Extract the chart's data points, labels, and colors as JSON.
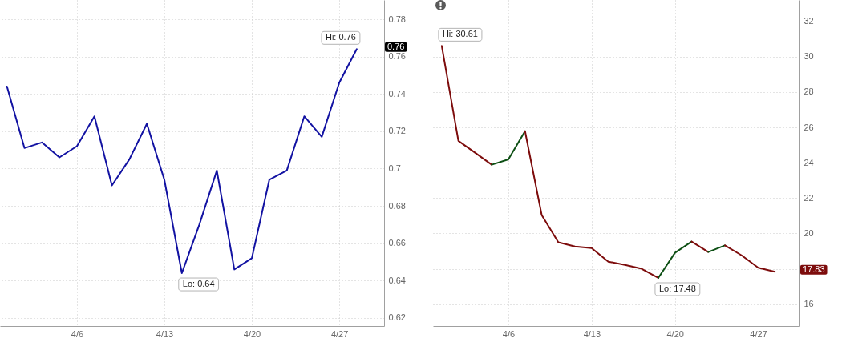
{
  "chart_data": [
    {
      "type": "line",
      "categories": [
        null,
        null,
        null,
        null,
        "4/6",
        null,
        null,
        null,
        null,
        "4/13",
        null,
        null,
        null,
        null,
        "4/20",
        null,
        null,
        null,
        null,
        "4/27",
        null
      ],
      "series": [
        {
          "color": "#1212a2",
          "values": [
            0.744,
            0.711,
            0.714,
            0.706,
            0.712,
            0.728,
            0.691,
            0.705,
            0.724,
            0.694,
            0.644,
            0.67,
            0.699,
            0.646,
            0.652,
            0.694,
            0.699,
            0.728,
            0.717,
            0.746,
            0.764
          ],
          "value_labels": [
            null,
            null,
            null,
            null,
            null,
            null,
            null,
            null,
            null,
            null,
            "Lo: 0.64",
            null,
            null,
            null,
            null,
            null,
            null,
            null,
            null,
            null,
            "Hi: 0.76"
          ]
        }
      ],
      "ylim": [
        0.6157,
        0.7903
      ],
      "yticks": [
        0.62,
        0.64,
        0.66,
        0.68,
        0.7,
        0.72,
        0.74,
        0.76,
        0.78
      ],
      "grid": true,
      "annotations": [
        "0.76"
      ]
    },
    {
      "type": "line",
      "categories": [
        null,
        null,
        null,
        null,
        "4/6",
        null,
        null,
        null,
        null,
        "4/13",
        null,
        null,
        null,
        null,
        "4/20",
        null,
        null,
        null,
        null,
        "4/27",
        null
      ],
      "series": [
        {
          "color": "#7d0c0c",
          "values": [
            30.61,
            25.24,
            24.57,
            23.89,
            null,
            null,
            null,
            null,
            null,
            null,
            null,
            null,
            null,
            null,
            null,
            null,
            null,
            null,
            null,
            null,
            null
          ],
          "value_labels": [
            "Hi: 30.61",
            null,
            null,
            null,
            null,
            null,
            null,
            null,
            null,
            null,
            null,
            null,
            null,
            null,
            null,
            null,
            null,
            null,
            null,
            null,
            null
          ]
        },
        {
          "color": "#0d4f14",
          "values": [
            null,
            null,
            null,
            23.89,
            24.19,
            25.79,
            null,
            null,
            null,
            null,
            null,
            null,
            null,
            null,
            null,
            null,
            null,
            null,
            null,
            null,
            null
          ]
        },
        {
          "color": "#7d0c0c",
          "values": [
            null,
            null,
            null,
            null,
            null,
            25.79,
            21.04,
            19.5,
            19.26,
            19.17,
            18.4,
            18.22,
            18.0,
            17.48,
            null,
            null,
            null,
            null,
            null,
            null,
            null
          ],
          "value_labels": [
            null,
            null,
            null,
            null,
            null,
            null,
            null,
            null,
            null,
            null,
            null,
            null,
            null,
            "Lo: 17.48",
            null,
            null,
            null,
            null,
            null,
            null,
            null
          ]
        },
        {
          "color": "#0d4f14",
          "values": [
            null,
            null,
            null,
            null,
            null,
            null,
            null,
            null,
            null,
            null,
            null,
            null,
            null,
            17.48,
            18.9,
            19.54,
            null,
            null,
            null,
            null,
            null
          ]
        },
        {
          "color": "#7d0c0c",
          "values": [
            null,
            null,
            null,
            null,
            null,
            null,
            null,
            null,
            null,
            null,
            null,
            null,
            null,
            null,
            null,
            19.54,
            18.95,
            null,
            null,
            null,
            null
          ]
        },
        {
          "color": "#0d4f14",
          "values": [
            null,
            null,
            null,
            null,
            null,
            null,
            null,
            null,
            null,
            null,
            null,
            null,
            null,
            null,
            null,
            null,
            18.95,
            19.32,
            null,
            null,
            null
          ]
        },
        {
          "color": "#7d0c0c",
          "values": [
            null,
            null,
            null,
            null,
            null,
            null,
            null,
            null,
            null,
            null,
            null,
            null,
            null,
            null,
            null,
            null,
            null,
            19.32,
            18.76,
            18.06,
            17.83
          ]
        }
      ],
      "ylim": [
        14.76,
        33.21
      ],
      "yticks": [
        16,
        {
          "value": 18,
          "label": null
        },
        20,
        22,
        24,
        26,
        28,
        30,
        32
      ],
      "grid": true,
      "annotations": [
        "17.83"
      ]
    }
  ]
}
